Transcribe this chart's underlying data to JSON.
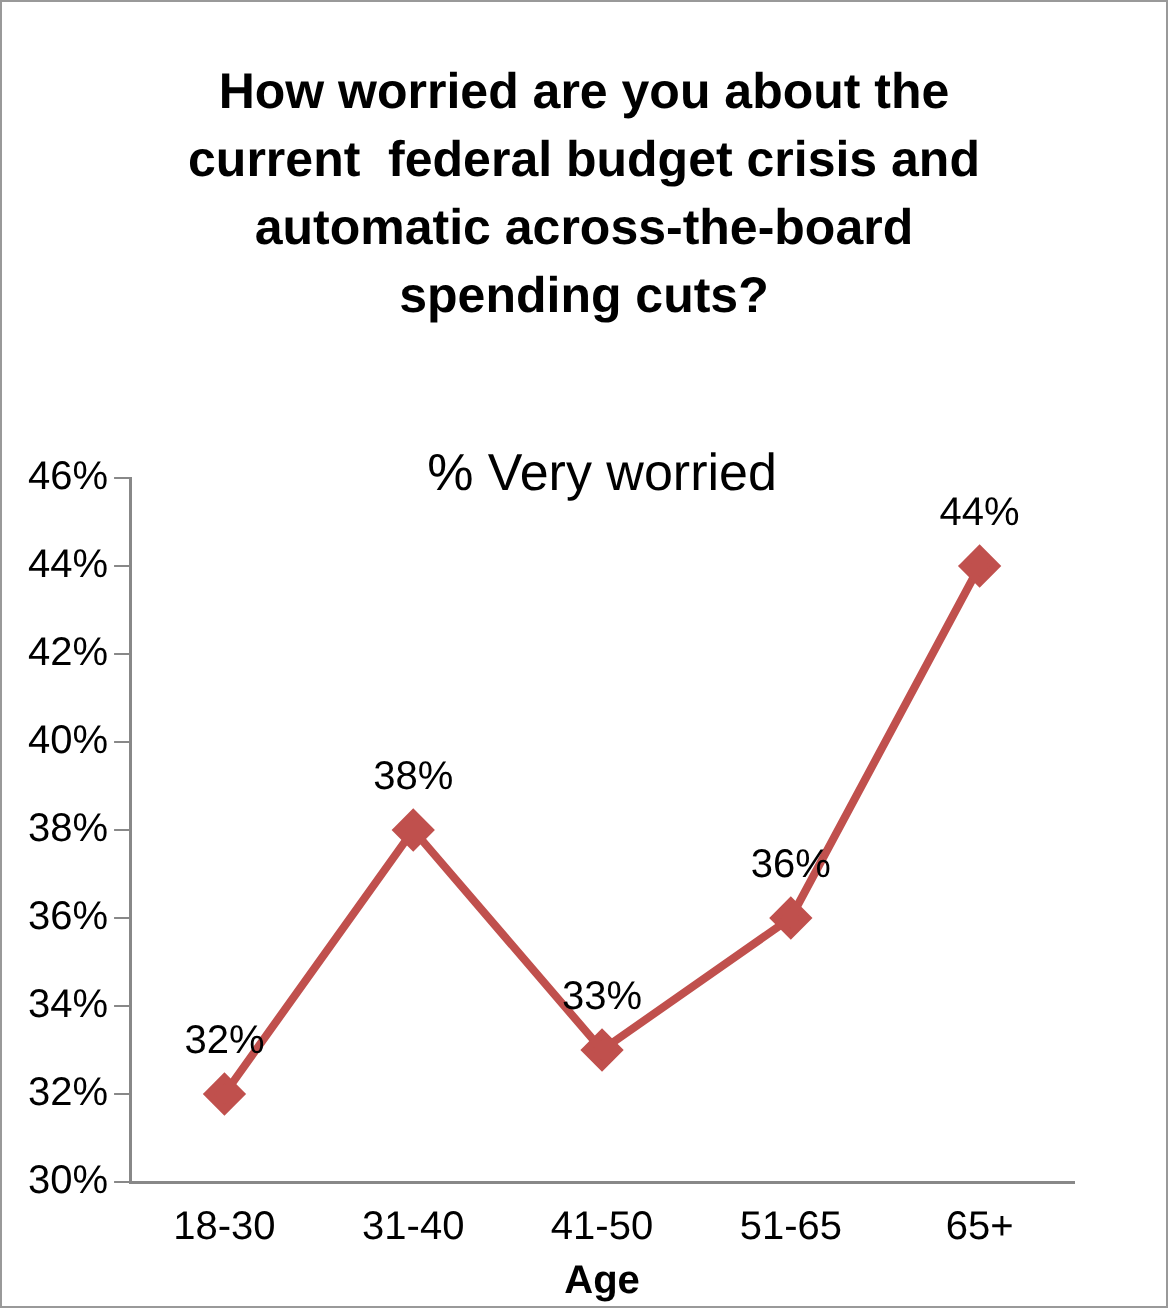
{
  "chart_data": {
    "type": "line",
    "title": "How worried are you about the current  federal budget crisis and automatic across-the-board spending cuts?",
    "subtitle": "% Very worried",
    "xlabel": "Age",
    "categories": [
      "18-30",
      "31-40",
      "41-50",
      "51-65",
      "65+"
    ],
    "series": [
      {
        "color": "#c0504d",
        "values": [
          32,
          38,
          33,
          36,
          44
        ],
        "value_labels": [
          "32%",
          "38%",
          "33%",
          "36%",
          "44%"
        ]
      }
    ],
    "ylim": [
      30,
      46
    ],
    "yticks": [
      {
        "value": 30,
        "label": "30%"
      },
      {
        "value": 32,
        "label": "32%"
      },
      {
        "value": 34,
        "label": "34%"
      },
      {
        "value": 36,
        "label": "36%"
      },
      {
        "value": 38,
        "label": "38%"
      },
      {
        "value": 40,
        "label": "40%"
      },
      {
        "value": 42,
        "label": "42%"
      },
      {
        "value": 44,
        "label": "44%"
      },
      {
        "value": 46,
        "label": "46%"
      }
    ],
    "grid": false,
    "legend": false,
    "marker": "diamond",
    "line_style": "solid"
  }
}
